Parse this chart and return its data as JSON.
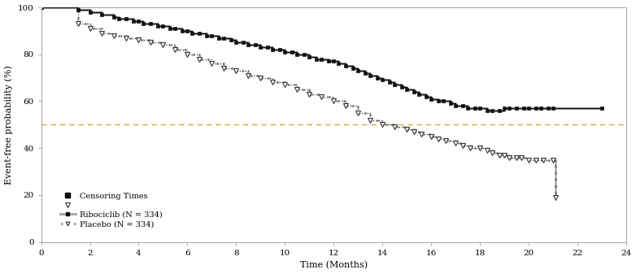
{
  "xlabel": "Time (Months)",
  "ylabel": "Event-free probability (%)",
  "xlim": [
    0,
    24
  ],
  "ylim": [
    0,
    100
  ],
  "xticks": [
    0,
    2,
    4,
    6,
    8,
    10,
    12,
    14,
    16,
    18,
    20,
    22,
    24
  ],
  "yticks": [
    0,
    20,
    40,
    60,
    80,
    100
  ],
  "median_line_y": 50,
  "median_line_color": "#D4A017",
  "background_color": "#ffffff",
  "ribociclib_label": "Ribociclib (N = 334)",
  "placebo_label": "Placebo (N = 334)",
  "censoring_label": "Censoring Times",
  "rib_t": [
    0,
    1.5,
    2.0,
    2.5,
    3.0,
    3.2,
    3.5,
    3.8,
    4.0,
    4.2,
    4.5,
    4.8,
    5.0,
    5.3,
    5.5,
    5.8,
    6.0,
    6.2,
    6.5,
    6.8,
    7.0,
    7.3,
    7.5,
    7.8,
    8.0,
    8.3,
    8.5,
    8.8,
    9.0,
    9.3,
    9.5,
    9.8,
    10.0,
    10.3,
    10.5,
    10.8,
    11.0,
    11.3,
    11.5,
    11.8,
    12.0,
    12.2,
    12.5,
    12.8,
    13.0,
    13.3,
    13.5,
    13.8,
    14.0,
    14.3,
    14.5,
    14.8,
    15.0,
    15.3,
    15.5,
    15.8,
    16.0,
    16.3,
    16.5,
    16.8,
    17.0,
    17.3,
    17.5,
    17.8,
    18.0,
    18.3,
    18.5,
    18.8,
    19.0,
    19.2,
    19.5,
    19.8,
    20.0,
    20.3,
    20.5,
    20.8,
    21.0,
    23.0
  ],
  "rib_s": [
    100,
    99,
    98,
    97,
    96,
    95,
    95,
    94,
    94,
    93,
    93,
    92,
    92,
    91,
    91,
    90,
    90,
    89,
    89,
    88,
    88,
    87,
    87,
    86,
    85,
    85,
    84,
    84,
    83,
    83,
    82,
    82,
    81,
    81,
    80,
    80,
    79,
    78,
    78,
    77,
    77,
    76,
    75,
    74,
    73,
    72,
    71,
    70,
    69,
    68,
    67,
    66,
    65,
    64,
    63,
    62,
    61,
    60,
    60,
    59,
    58,
    58,
    57,
    57,
    57,
    56,
    56,
    56,
    57,
    57,
    57,
    57,
    57,
    57,
    57,
    57,
    57,
    57
  ],
  "pla_t": [
    0,
    1.5,
    2.0,
    2.5,
    3.0,
    3.5,
    4.0,
    4.5,
    5.0,
    5.5,
    6.0,
    6.5,
    7.0,
    7.5,
    8.0,
    8.5,
    9.0,
    9.5,
    10.0,
    10.5,
    11.0,
    11.5,
    12.0,
    12.5,
    13.0,
    13.5,
    14.0,
    14.5,
    15.0,
    15.3,
    15.6,
    16.0,
    16.3,
    16.6,
    17.0,
    17.3,
    17.6,
    18.0,
    18.3,
    18.5,
    18.8,
    19.0,
    19.2,
    19.5,
    19.7,
    20.0,
    20.3,
    20.6,
    21.0,
    21.1
  ],
  "pla_s": [
    100,
    93,
    91,
    89,
    88,
    87,
    86,
    85,
    84,
    82,
    80,
    78,
    76,
    74,
    73,
    71,
    70,
    68,
    67,
    65,
    63,
    62,
    60,
    58,
    55,
    52,
    50,
    49,
    48,
    47,
    46,
    45,
    44,
    43,
    42,
    41,
    40,
    40,
    39,
    38,
    37,
    37,
    36,
    36,
    36,
    35,
    35,
    35,
    35,
    19
  ]
}
